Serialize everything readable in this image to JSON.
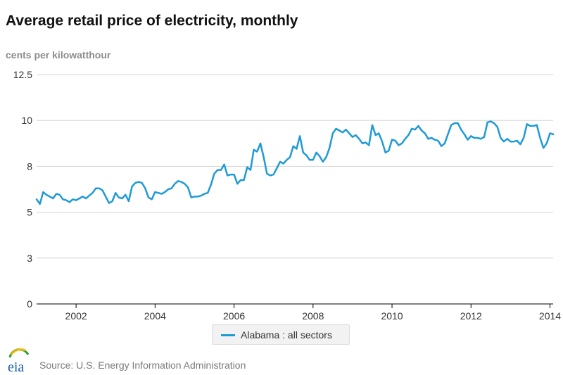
{
  "chart_data": {
    "type": "line",
    "title": "Average retail price of electricity, monthly",
    "ylabel": "cents per kilowatthour",
    "xlabel": "",
    "xlim": [
      2001.0,
      2014.08
    ],
    "ylim": [
      0,
      12.5
    ],
    "y_ticks": [
      0,
      2.5,
      5,
      7.5,
      10,
      12.5
    ],
    "y_tick_labels": [
      "0",
      "3",
      "5",
      "8",
      "10",
      "12.5"
    ],
    "x_ticks": [
      2002,
      2004,
      2006,
      2008,
      2010,
      2012,
      2014
    ],
    "x_tick_labels": [
      "2002",
      "2004",
      "2006",
      "2008",
      "2010",
      "2012",
      "2014"
    ],
    "grid": true,
    "legend_position": "bottom-center",
    "series": [
      {
        "name": "Alabama : all sectors",
        "color": "#1f9ad6",
        "start": 2001.0,
        "step": 0.0833333,
        "values": [
          5.7,
          5.45,
          6.1,
          5.95,
          5.85,
          5.75,
          6.0,
          5.95,
          5.7,
          5.65,
          5.55,
          5.7,
          5.65,
          5.75,
          5.85,
          5.75,
          5.9,
          6.05,
          6.3,
          6.3,
          6.2,
          5.85,
          5.5,
          5.6,
          6.05,
          5.8,
          5.75,
          5.95,
          5.6,
          6.4,
          6.6,
          6.65,
          6.6,
          6.3,
          5.8,
          5.7,
          6.1,
          6.05,
          6.0,
          6.1,
          6.25,
          6.3,
          6.55,
          6.7,
          6.65,
          6.55,
          6.35,
          5.8,
          5.85,
          5.85,
          5.9,
          6.0,
          6.05,
          6.5,
          7.1,
          7.3,
          7.3,
          7.6,
          7.0,
          7.05,
          7.05,
          6.55,
          6.75,
          6.75,
          7.45,
          7.3,
          8.4,
          8.3,
          8.75,
          8.0,
          7.1,
          7.0,
          7.05,
          7.4,
          7.75,
          7.65,
          7.85,
          8.0,
          8.6,
          8.45,
          9.15,
          8.25,
          8.1,
          7.85,
          7.85,
          8.25,
          8.05,
          7.75,
          8.0,
          8.5,
          9.3,
          9.55,
          9.45,
          9.35,
          9.5,
          9.3,
          9.1,
          9.2,
          9.0,
          8.75,
          8.8,
          8.65,
          9.75,
          9.2,
          9.3,
          8.85,
          8.25,
          8.35,
          8.95,
          8.9,
          8.65,
          8.75,
          9.0,
          9.2,
          9.55,
          9.5,
          9.7,
          9.45,
          9.3,
          9.0,
          9.05,
          8.95,
          8.9,
          8.6,
          8.75,
          9.25,
          9.75,
          9.85,
          9.85,
          9.5,
          9.25,
          8.95,
          9.15,
          9.05,
          9.05,
          9.0,
          9.1,
          9.9,
          9.95,
          9.85,
          9.65,
          9.05,
          8.85,
          9.0,
          8.85,
          8.85,
          8.9,
          8.7,
          9.05,
          9.8,
          9.7,
          9.7,
          9.75,
          9.05,
          8.5,
          8.75,
          9.3,
          9.25
        ]
      }
    ]
  },
  "footer": {
    "source": "Source: U.S. Energy Information Administration",
    "logo_text": "eia"
  }
}
